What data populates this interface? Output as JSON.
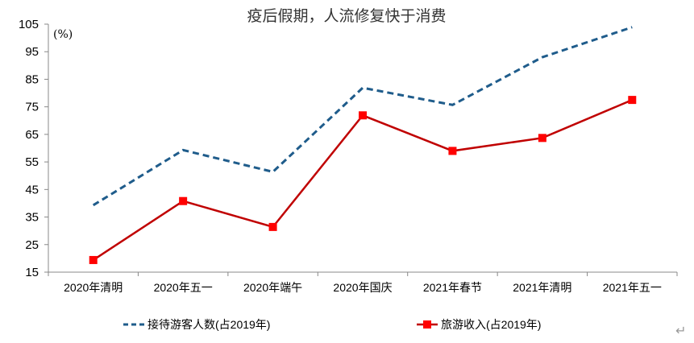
{
  "chart_data": {
    "type": "line",
    "title": "疫后假期，人流修复快于消费",
    "unit_label": "(%)",
    "categories": [
      "2020年清明",
      "2020年五一",
      "2020年端午",
      "2020年国庆",
      "2021年春节",
      "2021年清明",
      "2021年五一"
    ],
    "ylim": [
      15,
      105
    ],
    "yticks": [
      15,
      25,
      35,
      45,
      55,
      65,
      75,
      85,
      95,
      105
    ],
    "grid": false,
    "legend_position": "bottom",
    "series": [
      {
        "name": "接待游客人数(占2019年)",
        "color": "#1F5C8B",
        "style": "dashed",
        "marker": "none",
        "values": [
          39.3,
          59.3,
          51.4,
          81.9,
          75.7,
          93.0,
          103.9
        ]
      },
      {
        "name": "旅游收入(占2019年)",
        "color": "#C00000",
        "style": "solid",
        "marker": "square",
        "values": [
          19.4,
          40.8,
          31.4,
          71.9,
          59.0,
          63.7,
          77.5
        ]
      }
    ]
  },
  "return_mark": "↵"
}
